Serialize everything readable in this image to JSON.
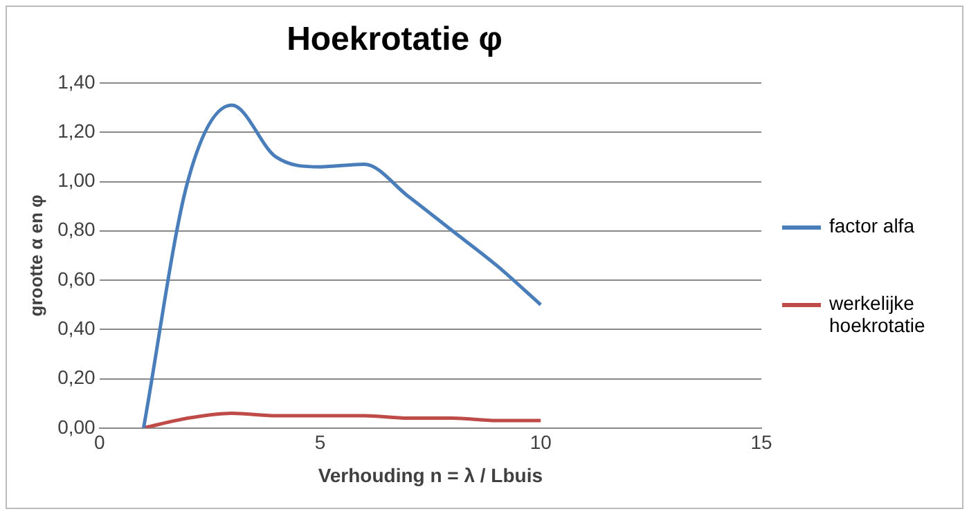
{
  "chart_data": {
    "type": "line",
    "title": "Hoekrotatie φ",
    "xlabel": "Verhouding n = λ / Lbuis",
    "ylabel": "grootte α en φ",
    "x": [
      1,
      2,
      3,
      4,
      5,
      6,
      7,
      8,
      9,
      10
    ],
    "series": [
      {
        "name": "factor alfa",
        "color": "#4a7ebb",
        "values": [
          0,
          1.0,
          1.31,
          1.1,
          1.06,
          1.07,
          0.94,
          0.8,
          0.66,
          0.5
        ]
      },
      {
        "name": "werkelijke hoekrotatie",
        "color": "#be4b48",
        "values": [
          0,
          0.04,
          0.06,
          0.05,
          0.05,
          0.05,
          0.04,
          0.04,
          0.03,
          0.03
        ]
      }
    ],
    "xlim": [
      0,
      15
    ],
    "xticks": [
      0,
      5,
      10,
      15
    ],
    "ylim": [
      0,
      1.4
    ],
    "yticks": [
      {
        "value": 0,
        "label": "0,00"
      },
      {
        "value": 0.2,
        "label": "0,20"
      },
      {
        "value": 0.4,
        "label": "0,40"
      },
      {
        "value": 0.6,
        "label": "0,60"
      },
      {
        "value": 0.8,
        "label": "0,80"
      },
      {
        "value": 1.0,
        "label": "1,00"
      },
      {
        "value": 1.2,
        "label": "1,20"
      },
      {
        "value": 1.4,
        "label": "1,40"
      }
    ],
    "grid": "y",
    "legend": "right",
    "marker": "none",
    "line_style": "solid"
  }
}
